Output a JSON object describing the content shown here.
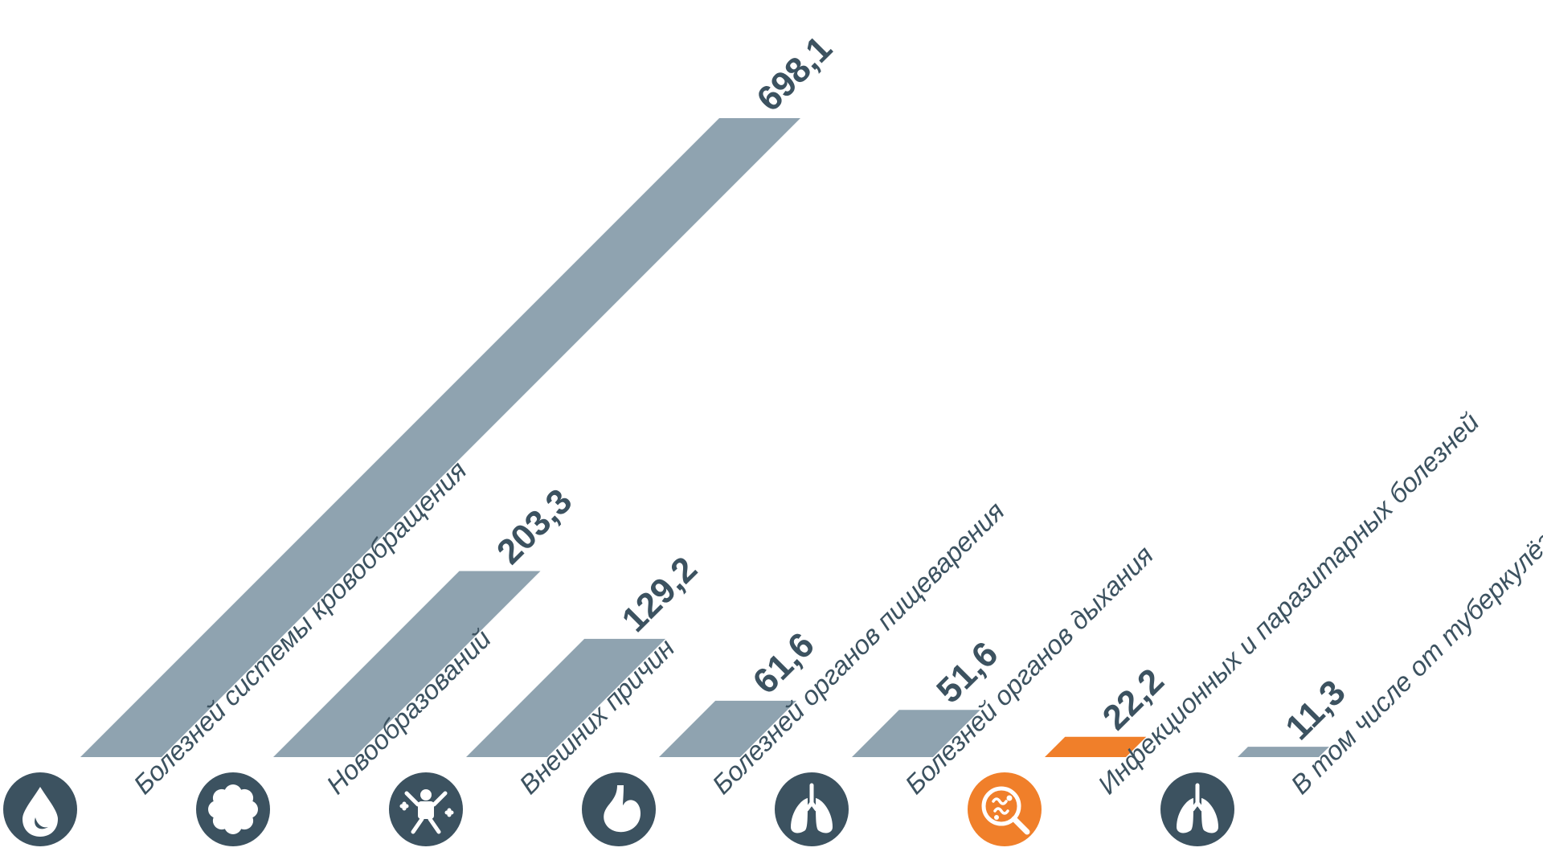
{
  "chart_data": {
    "type": "bar",
    "categories": [
      "Болезней системы кровообращения",
      "Новообразований",
      "Внешних причин",
      "Болезней органов пищеварения",
      "Болезней органов дыхания",
      "Инфекционных и паразитарных болезней",
      "В том числе от туберкулёза"
    ],
    "values": [
      698.1,
      203.3,
      129.2,
      61.6,
      51.6,
      22.2,
      11.3
    ],
    "value_labels": [
      "698,1",
      "203,3",
      "129,2",
      "61,6",
      "51,6",
      "22,2",
      "11,3"
    ],
    "icons": [
      "blood-drop-icon",
      "tumor-cell-icon",
      "injured-person-icon",
      "stomach-icon",
      "lungs-icon",
      "bacteria-icon",
      "lungs-icon"
    ],
    "highlight_index": 5,
    "title": "",
    "xlabel": "",
    "ylabel": "",
    "grid": false,
    "legend": "none",
    "colors": {
      "bar": "#8fa3b0",
      "text": "#3c5260",
      "icon_bg": "#3c5260",
      "highlight": "#f07f2a",
      "icon_fg": "#ffffff"
    }
  }
}
